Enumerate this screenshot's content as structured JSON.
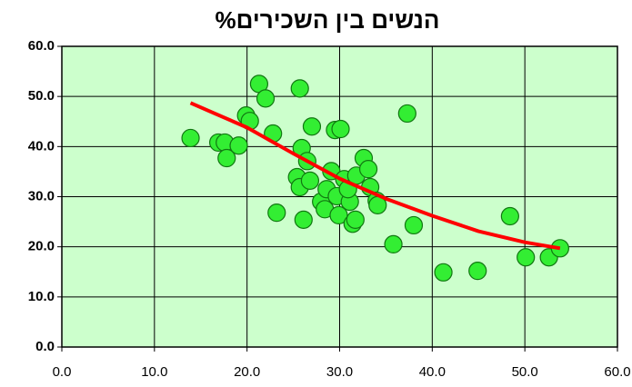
{
  "chart_data": {
    "type": "scatter",
    "title": "%הנשים בין השכירים",
    "series": [
      {
        "color": "#33ee33",
        "x": [
          13.9,
          16.9,
          17.6,
          17.8,
          19.1,
          19.9,
          20.3,
          21.3,
          22.0,
          22.8,
          23.2,
          25.7,
          25.9,
          26.1,
          25.4,
          25.7,
          26.5,
          26.8,
          27.0,
          28.0,
          28.4,
          28.6,
          29.1,
          29.5,
          30.1,
          29.7,
          29.9,
          30.5,
          31.1,
          30.9,
          31.4,
          31.7,
          31.8,
          32.6,
          33.1,
          33.3,
          34.0,
          34.1,
          35.8,
          37.3,
          38.0,
          41.2,
          44.9,
          48.4,
          50.1,
          52.6,
          53.8
        ],
        "values": [
          41.7,
          40.8,
          40.8,
          37.7,
          40.2,
          46.2,
          45.1,
          52.5,
          49.6,
          42.6,
          26.8,
          51.6,
          39.7,
          25.4,
          33.9,
          31.9,
          37.1,
          33.2,
          44.0,
          29.0,
          27.5,
          31.5,
          35.1,
          43.3,
          43.5,
          30.1,
          26.3,
          33.5,
          29.0,
          31.5,
          24.6,
          25.4,
          34.2,
          37.7,
          35.5,
          31.9,
          29.2,
          28.3,
          20.5,
          46.6,
          24.3,
          14.9,
          15.2,
          26.1,
          17.9,
          17.9,
          19.7
        ]
      }
    ],
    "trendline": {
      "color": "#ff0000",
      "x": [
        13.9,
        20,
        25,
        30,
        35,
        40,
        45,
        50,
        53.8
      ],
      "values": [
        48.7,
        43.8,
        38.6,
        33.6,
        29.6,
        26.2,
        23.1,
        20.9,
        19.7
      ]
    },
    "xlim": [
      0,
      60
    ],
    "ylim": [
      0,
      60
    ],
    "xticks": [
      {
        "value": 0,
        "label": "0.0"
      },
      {
        "value": 10,
        "label": "10.0"
      },
      {
        "value": 20,
        "label": "20.0"
      },
      {
        "value": 30,
        "label": "30.0"
      },
      {
        "value": 40,
        "label": "40.0"
      },
      {
        "value": 50,
        "label": "50.0"
      },
      {
        "value": 60,
        "label": "60.0"
      }
    ],
    "yticks": [
      {
        "value": 0,
        "label": "0.0"
      },
      {
        "value": 10,
        "label": "10.0"
      },
      {
        "value": 20,
        "label": "20.0"
      },
      {
        "value": 30,
        "label": "30.0"
      },
      {
        "value": 40,
        "label": "40.0"
      },
      {
        "value": 50,
        "label": "50.0"
      },
      {
        "value": 60,
        "label": "60.0"
      }
    ],
    "grid": true,
    "plot_background": "#ccffcc"
  }
}
